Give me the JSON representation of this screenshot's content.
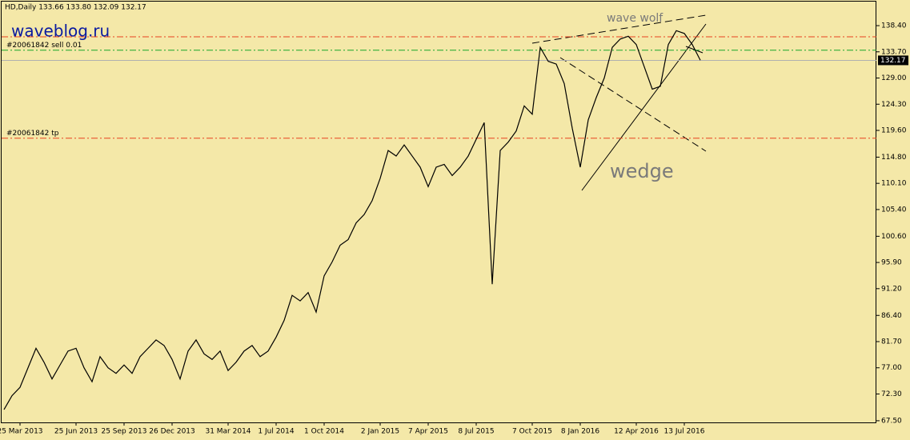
{
  "chart_data": {
    "type": "line",
    "title": "HD,Daily  133.66 133.80 132.09 132.17",
    "watermark": "waveblog.ru",
    "annotations": [
      "wave wolf",
      "wedge"
    ],
    "categories": [
      null,
      null,
      "25 Mar 2013",
      null,
      null,
      null,
      null,
      null,
      null,
      "25 Jun 2013",
      null,
      null,
      null,
      null,
      null,
      "25 Sep 2013",
      null,
      null,
      null,
      null,
      null,
      "26 Dec 2013",
      null,
      null,
      null,
      null,
      null,
      null,
      "31 Mar 2014",
      null,
      null,
      null,
      null,
      null,
      "1 Jul 2014",
      null,
      null,
      null,
      null,
      null,
      "1 Oct 2014",
      null,
      null,
      null,
      null,
      null,
      null,
      "2 Jan 2015",
      null,
      null,
      null,
      null,
      null,
      "7 Apr 2015",
      null,
      null,
      null,
      null,
      null,
      "8 Jul 2015",
      null,
      null,
      null,
      null,
      null,
      null,
      "7 Oct 2015",
      null,
      null,
      null,
      null,
      null,
      "8 Jan 2016",
      null,
      null,
      null,
      null,
      null,
      null,
      "12 Apr 2016",
      null,
      null,
      null,
      null,
      null,
      "13 Jul 2016",
      null,
      null
    ],
    "series": [
      {
        "name": "HD",
        "color": "#000000",
        "values": [
          69.5,
          72,
          73.5,
          77,
          80.5,
          78,
          75,
          77.5,
          80,
          80.5,
          77,
          74.5,
          79,
          77,
          76,
          77.5,
          76,
          79,
          80.5,
          82,
          81,
          78.5,
          75,
          80,
          82,
          79.5,
          78.5,
          80,
          76.5,
          78,
          80,
          81,
          79,
          80,
          82.5,
          85.5,
          90,
          89,
          90.5,
          87,
          93.5,
          96,
          99,
          100,
          103,
          104.5,
          107,
          111,
          116,
          115,
          117,
          115,
          113,
          109.5,
          113,
          113.5,
          111.5,
          113,
          115,
          118,
          121,
          92,
          116,
          117.5,
          119.5,
          124,
          122.5,
          134.5,
          132,
          131.5,
          128,
          120,
          113,
          121.5,
          125.5,
          129,
          134.5,
          136,
          136.5,
          135,
          131,
          127,
          127.5,
          135,
          137.5,
          137,
          135,
          132.2
        ]
      }
    ],
    "levels": [
      {
        "value": 136.4,
        "color": "#e8421e"
      },
      {
        "value": 134.0,
        "color": "#17a52a",
        "label": "#20061842 sell 0.01"
      },
      {
        "value": 118.2,
        "color": "#e8421e",
        "label": "#20061842 tp"
      }
    ],
    "last_price": {
      "value": 132.17,
      "label": "132.17"
    },
    "ylim": [
      67.2,
      143.0
    ],
    "yticks": [
      {
        "value": 138.4,
        "label": "138.40"
      },
      {
        "value": 133.7,
        "label": "133.70"
      },
      {
        "value": 129.0,
        "label": "129.00"
      },
      {
        "value": 124.3,
        "label": "124.30"
      },
      {
        "value": 119.6,
        "label": "119.60"
      },
      {
        "value": 114.8,
        "label": "114.80"
      },
      {
        "value": 110.1,
        "label": "110.10"
      },
      {
        "value": 105.4,
        "label": "105.40"
      },
      {
        "value": 100.6,
        "label": "100.60"
      },
      {
        "value": 95.9,
        "label": "95.90"
      },
      {
        "value": 91.2,
        "label": "91.20"
      },
      {
        "value": 86.4,
        "label": "86.40"
      },
      {
        "value": 81.7,
        "label": "81.70"
      },
      {
        "value": 77.0,
        "label": "77.00"
      },
      {
        "value": 72.3,
        "label": "72.30"
      },
      {
        "value": 67.5,
        "label": "67.50"
      }
    ]
  }
}
